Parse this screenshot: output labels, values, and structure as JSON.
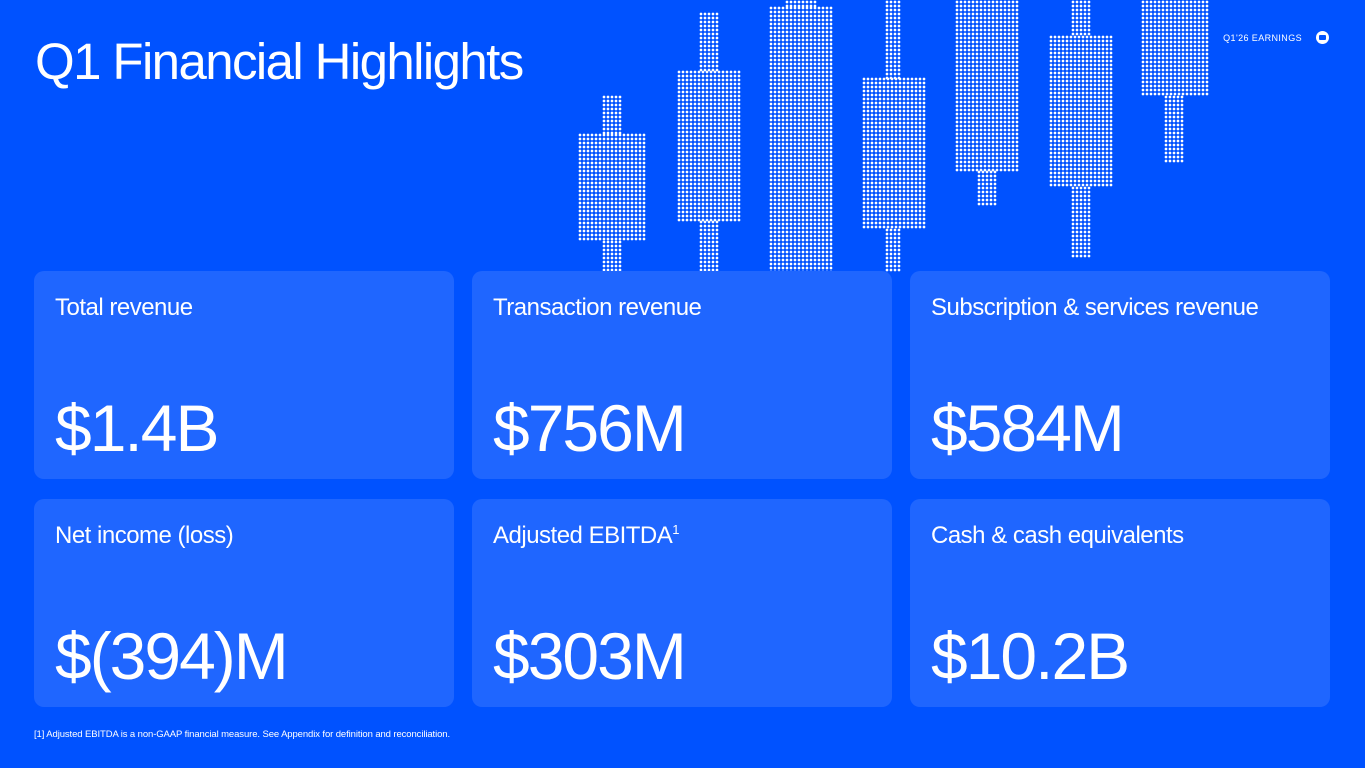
{
  "page": {
    "title": "Q1 Financial Highlights",
    "header_label": "Q1'26 EARNINGS",
    "logo_icon": "brand-logo-icon"
  },
  "colors": {
    "background": "#0052FF",
    "card": "#1F66FF",
    "text": "#FFFFFF"
  },
  "metrics": [
    {
      "label": "Total revenue",
      "value": "$1.4B"
    },
    {
      "label": "Transaction revenue",
      "value": "$756M"
    },
    {
      "label": "Subscription & services revenue",
      "value": "$584M"
    },
    {
      "label": "Net income (loss)",
      "value": "$(394)M"
    },
    {
      "label": "Adjusted EBITDA",
      "footnote_ref": "1",
      "value": "$303M"
    },
    {
      "label": "Cash & cash equivalents",
      "value": "$10.2B"
    }
  ],
  "footnote": "[1] Adjusted EBITDA is a non-GAAP financial measure. See Appendix for definition and reconciliation."
}
